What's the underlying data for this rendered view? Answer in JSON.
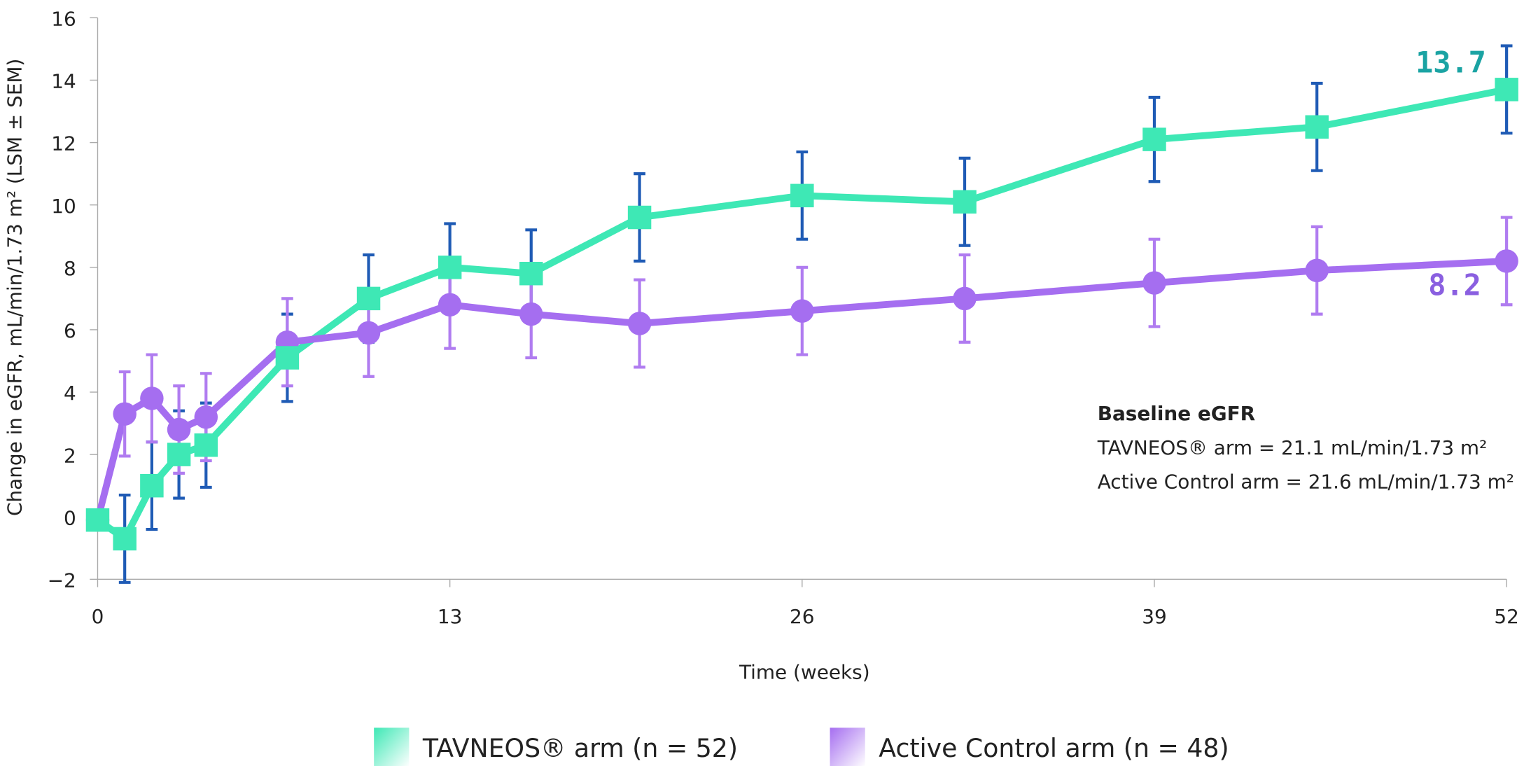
{
  "chart_data": {
    "type": "line",
    "y_label": "Change in eGFR, mL/min/1.73 m² (LSM ± SEM)",
    "x_label": "Time (weeks)",
    "xlim": [
      0,
      52
    ],
    "xticks": [
      0,
      13,
      26,
      39,
      52
    ],
    "ylim": [
      -2,
      16
    ],
    "yticks": [
      {
        "value": -2,
        "label": "−2"
      },
      0,
      2,
      4,
      6,
      8,
      10,
      12,
      14,
      16
    ],
    "x": [
      0,
      1,
      2,
      3,
      4,
      7,
      10,
      13,
      16,
      20,
      26,
      32,
      39,
      45,
      52
    ],
    "series": [
      {
        "name": "TAVNEOS® arm (n = 52)",
        "color": "#3ee8b5",
        "error_color": "#1f5bb5",
        "label_color": "#1aa3a3",
        "marker": "square",
        "values": [
          -0.1,
          -0.7,
          1.0,
          2.0,
          2.3,
          5.1,
          7.0,
          8.0,
          7.8,
          9.6,
          10.3,
          10.1,
          12.1,
          12.5,
          13.7
        ],
        "errors": [
          null,
          1.4,
          1.4,
          1.4,
          1.35,
          1.4,
          1.4,
          1.4,
          1.4,
          1.4,
          1.4,
          1.4,
          1.35,
          1.4,
          1.4
        ]
      },
      {
        "name": "Active Control arm (n = 48)",
        "color": "#a56ef0",
        "error_color": "#b07cf0",
        "label_color": "#8a5fe0",
        "marker": "circle",
        "values": [
          -0.1,
          3.3,
          3.8,
          2.8,
          3.2,
          5.6,
          5.9,
          6.8,
          6.5,
          6.2,
          6.6,
          7.0,
          7.5,
          7.9,
          8.2
        ],
        "errors": [
          null,
          1.35,
          1.4,
          1.4,
          1.4,
          1.4,
          1.4,
          1.4,
          1.4,
          1.4,
          1.4,
          1.4,
          1.4,
          1.4,
          1.4
        ]
      }
    ],
    "annotation": {
      "title": "Baseline eGFR",
      "lines": [
        "TAVNEOS® arm = 21.1 mL/min/1.73 m²",
        "Active Control arm = 21.6 mL/min/1.73 m²"
      ]
    }
  }
}
